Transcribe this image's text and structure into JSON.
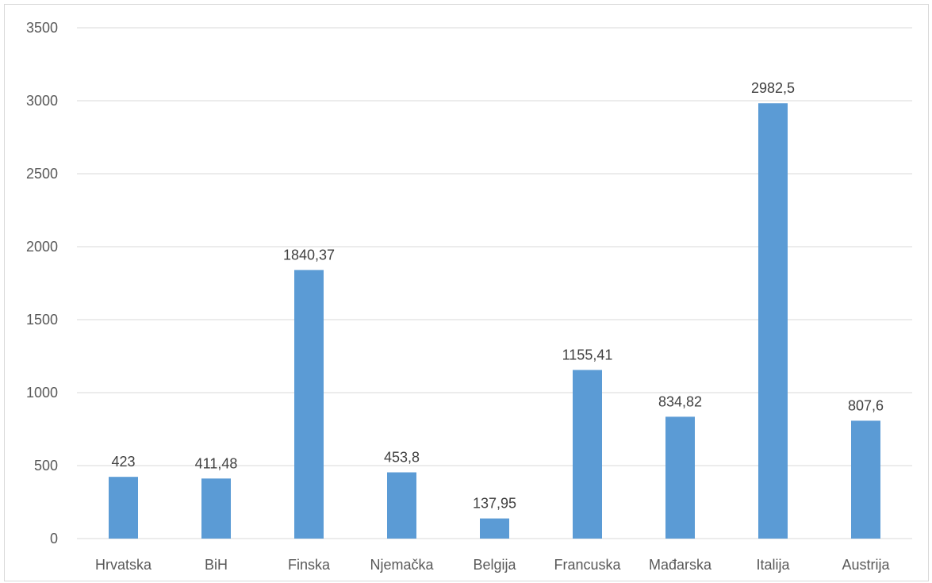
{
  "chart_data": {
    "type": "bar",
    "categories": [
      "Hrvatska",
      "BiH",
      "Finska",
      "Njemačka",
      "Belgija",
      "Francuska",
      "Mađarska",
      "Italija",
      "Austrija"
    ],
    "values": [
      423,
      411.48,
      1840.37,
      453.8,
      137.95,
      1155.41,
      834.82,
      2982.5,
      807.6
    ],
    "data_labels": [
      "423",
      "411,48",
      "1840,37",
      "453,8",
      "137,95",
      "1155,41",
      "834,82",
      "2982,5",
      "807,6"
    ],
    "title": "",
    "xlabel": "",
    "ylabel": "",
    "ylim": [
      0,
      3500
    ],
    "yticks": [
      0,
      500,
      1000,
      1500,
      2000,
      2500,
      3000,
      3500
    ],
    "grid": true,
    "legend": "none",
    "bar_color": "#5b9bd5",
    "grid_color": "#d9d9d9"
  }
}
